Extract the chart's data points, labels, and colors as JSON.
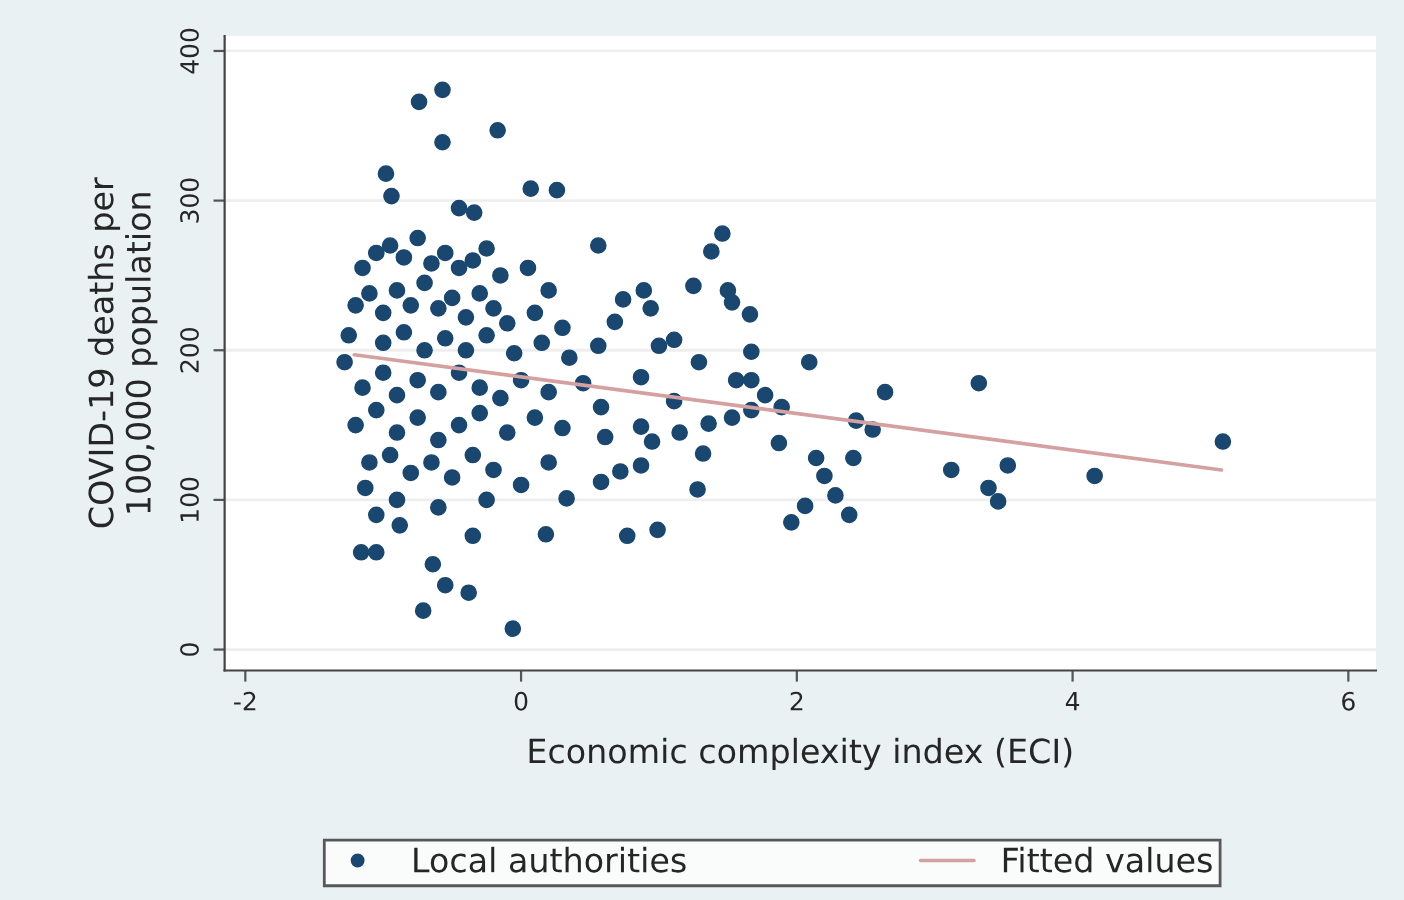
{
  "chart_data": {
    "type": "scatter",
    "xlabel": "Economic complexity index (ECI)",
    "ylabel": "COVID-19 deaths per\n100,000 population",
    "xlim": [
      -2.15,
      6.2
    ],
    "ylim": [
      -14,
      410
    ],
    "xticks": [
      -2,
      0,
      2,
      4,
      6
    ],
    "yticks": [
      0,
      100,
      200,
      300,
      400
    ],
    "grid": "y",
    "legend": "bottom",
    "marker": "circle",
    "series": [
      {
        "name": "Local authorities",
        "color": "#1a476f",
        "x": [
          -0.74,
          -0.57,
          -0.57,
          -0.17,
          -0.98,
          0.07,
          0.26,
          -0.94,
          -0.45,
          -0.34,
          -1.28,
          -1.16,
          -1.05,
          -0.71,
          -0.06,
          -0.55,
          -0.38,
          -1.05,
          -0.88,
          -0.64,
          -0.35,
          -1.13,
          0.18,
          0.33,
          -1.15,
          -1.05,
          -0.95,
          -0.85,
          -0.75,
          -0.65,
          -0.55,
          -0.45,
          -0.35,
          -0.25,
          -0.15,
          0.05,
          0.2,
          -1.2,
          -1.1,
          -1.0,
          -0.9,
          -0.8,
          -0.7,
          -0.6,
          -0.5,
          -0.4,
          -0.3,
          -0.2,
          -0.1,
          0.1,
          0.3,
          -1.25,
          -1.0,
          -0.85,
          -0.7,
          -0.55,
          -0.4,
          -0.25,
          -0.05,
          0.15,
          0.35,
          -1.15,
          -1.0,
          -0.9,
          -0.75,
          -0.6,
          -0.45,
          -0.3,
          -0.15,
          0.0,
          0.2,
          0.45,
          -1.2,
          -1.05,
          -0.9,
          -0.75,
          -0.6,
          -0.45,
          -0.3,
          -0.1,
          0.1,
          0.3,
          -1.1,
          -0.95,
          -0.8,
          -0.65,
          -0.5,
          -0.35,
          -0.2,
          0.0,
          0.2,
          -0.9,
          -0.6,
          -0.25,
          0.56,
          1.46,
          1.38,
          1.25,
          0.89,
          0.94,
          0.74,
          1.5,
          1.53,
          1.66,
          0.68,
          1.11,
          1.0,
          0.56,
          1.67,
          2.09,
          1.29,
          0.87,
          1.56,
          1.67,
          2.64,
          1.77,
          1.89,
          0.58,
          1.11,
          1.53,
          1.67,
          1.36,
          2.43,
          2.55,
          0.87,
          1.15,
          0.61,
          0.95,
          1.87,
          1.32,
          2.14,
          2.41,
          3.12,
          2.2,
          0.87,
          0.72,
          0.58,
          1.28,
          2.28,
          2.06,
          2.38,
          1.96,
          0.77,
          0.99,
          3.32,
          5.09,
          3.53,
          3.39,
          3.46,
          4.16
        ],
        "values": [
          366,
          374,
          339,
          347,
          318,
          308,
          307,
          303,
          295,
          292,
          192,
          65,
          65,
          26,
          14,
          43,
          38,
          90,
          83,
          57,
          76,
          108,
          77,
          101,
          255,
          265,
          270,
          262,
          275,
          258,
          265,
          255,
          260,
          268,
          250,
          255,
          240,
          230,
          238,
          225,
          240,
          230,
          245,
          228,
          235,
          222,
          238,
          228,
          218,
          225,
          215,
          210,
          205,
          212,
          200,
          208,
          200,
          210,
          198,
          205,
          195,
          175,
          185,
          170,
          180,
          172,
          185,
          175,
          168,
          180,
          172,
          178,
          150,
          160,
          145,
          155,
          140,
          150,
          158,
          145,
          155,
          148,
          125,
          130,
          118,
          125,
          115,
          130,
          120,
          110,
          125,
          100,
          95,
          100,
          270,
          278,
          266,
          243,
          240,
          228,
          234,
          240,
          232,
          224,
          219,
          207,
          203,
          203,
          199,
          192,
          192,
          182,
          180,
          180,
          172,
          170,
          162,
          162,
          166,
          155,
          160,
          151,
          153,
          147,
          149,
          145,
          142,
          139,
          138,
          131,
          128,
          128,
          120,
          116,
          123,
          119,
          112,
          107,
          103,
          96,
          90,
          85,
          76,
          80,
          178,
          139,
          123,
          108,
          99,
          116
        ]
      },
      {
        "name": "Fitted values",
        "type": "line",
        "color": "#d4a0a0",
        "marker": "none",
        "line_style": "solid",
        "x": [
          -1.21,
          5.08
        ],
        "values": [
          197,
          120
        ]
      }
    ]
  }
}
